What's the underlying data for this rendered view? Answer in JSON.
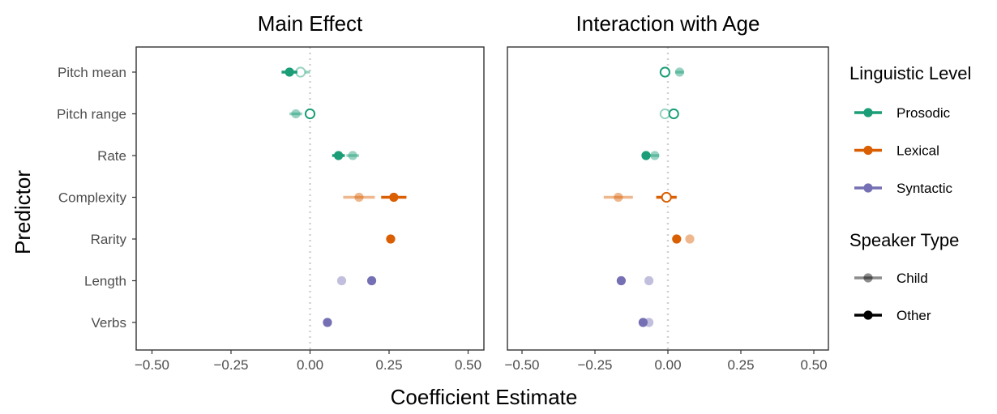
{
  "chart_data": {
    "type": "scatter",
    "subtype": "coefficient-dot-whisker",
    "xlabel": "Coefficient Estimate",
    "ylabel": "Predictor",
    "xlim": [
      -0.55,
      0.55
    ],
    "x_ticks": [
      -0.5,
      -0.25,
      0.0,
      0.25,
      0.5
    ],
    "x_tick_labels": [
      "−0.50",
      "−0.25",
      "0.00",
      "0.25",
      "0.50"
    ],
    "reference_line": 0,
    "grid": false,
    "legend_position": "right",
    "categories": [
      "Pitch mean",
      "Pitch range",
      "Rate",
      "Complexity",
      "Rarity",
      "Length",
      "Verbs"
    ],
    "level_colors": {
      "Prosodic": "#1b9e77",
      "Lexical": "#d95f02",
      "Syntactic": "#7570b3"
    },
    "predictor_levels": [
      "Prosodic",
      "Prosodic",
      "Prosodic",
      "Lexical",
      "Lexical",
      "Syntactic",
      "Syntactic"
    ],
    "legend": {
      "level_title": "Linguistic Level",
      "levels": [
        "Prosodic",
        "Lexical",
        "Syntactic"
      ],
      "speaker_title": "Speaker Type",
      "speakers": [
        "Child",
        "Other"
      ]
    },
    "panels": [
      {
        "title": "Main Effect",
        "series": [
          {
            "name": "Child",
            "values": [
              -0.03,
              -0.045,
              0.135,
              0.155,
              null,
              0.1,
              null
            ],
            "ci_low": [
              -0.05,
              -0.065,
              0.115,
              0.105,
              null,
              0.1,
              null
            ],
            "ci_high": [
              0.0,
              -0.025,
              0.155,
              0.205,
              null,
              0.1,
              null
            ],
            "hollow": [
              true,
              false,
              false,
              false,
              false,
              false,
              false
            ]
          },
          {
            "name": "Other",
            "values": [
              -0.065,
              0.0,
              0.09,
              0.265,
              0.255,
              0.195,
              0.055
            ],
            "ci_low": [
              -0.09,
              -0.015,
              0.07,
              0.225,
              0.255,
              0.195,
              0.055
            ],
            "ci_high": [
              -0.04,
              0.015,
              0.11,
              0.305,
              0.255,
              0.195,
              0.055
            ],
            "hollow": [
              false,
              true,
              false,
              false,
              false,
              false,
              false
            ]
          }
        ]
      },
      {
        "title": "Interaction with Age",
        "series": [
          {
            "name": "Child",
            "values": [
              0.04,
              -0.01,
              -0.045,
              -0.17,
              0.075,
              -0.065,
              -0.065
            ],
            "ci_low": [
              0.025,
              -0.025,
              -0.06,
              -0.22,
              0.075,
              -0.065,
              -0.065
            ],
            "ci_high": [
              0.055,
              0.005,
              -0.03,
              -0.12,
              0.075,
              -0.065,
              -0.065
            ],
            "hollow": [
              false,
              true,
              false,
              false,
              false,
              false,
              false
            ]
          },
          {
            "name": "Other",
            "values": [
              -0.01,
              0.02,
              -0.075,
              -0.005,
              0.03,
              -0.16,
              -0.085
            ],
            "ci_low": [
              -0.025,
              0.005,
              -0.09,
              -0.04,
              0.03,
              -0.16,
              -0.085
            ],
            "ci_high": [
              0.005,
              0.035,
              -0.06,
              0.03,
              0.03,
              -0.16,
              -0.085
            ],
            "hollow": [
              true,
              true,
              false,
              true,
              false,
              false,
              false
            ]
          }
        ]
      }
    ]
  }
}
